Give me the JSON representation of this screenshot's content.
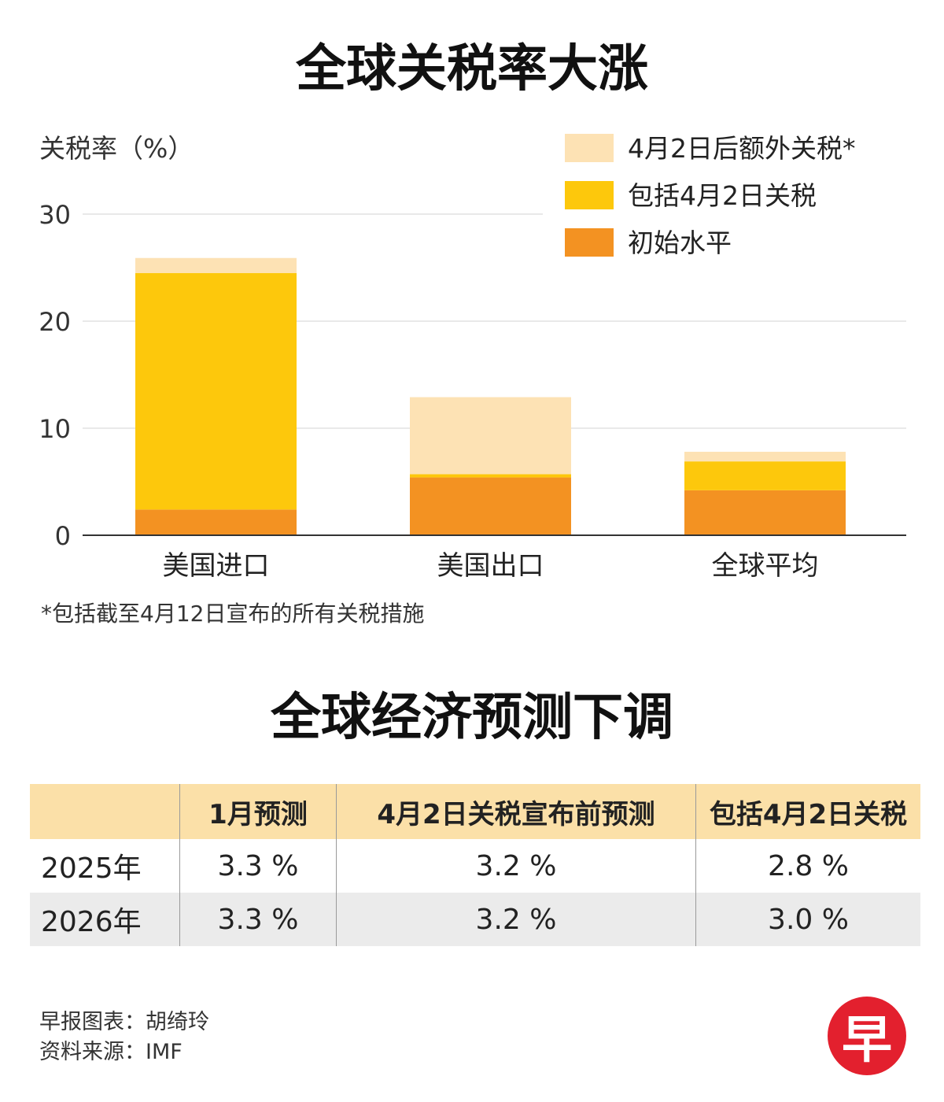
{
  "title_tariff": "全球关税率大涨",
  "title_forecast": "全球经济预测下调",
  "footnote": "*包括截至4月12日宣布的所有关税措施",
  "chart_data": {
    "type": "bar",
    "stacked": true,
    "ylabel": "关税率（%）",
    "ylim": [
      0,
      30
    ],
    "yticks": [
      0,
      10,
      20,
      30
    ],
    "categories": [
      "美国进口",
      "美国出口",
      "全球平均"
    ],
    "legend_position": "top-right",
    "series": [
      {
        "name": "初始水平",
        "color": "#f39222",
        "values": [
          2.4,
          5.4,
          4.2
        ]
      },
      {
        "name": "包括4月2日关税",
        "color": "#fdc80c",
        "values": [
          22.1,
          0.3,
          2.7
        ]
      },
      {
        "name": "4月2日后额外关税*",
        "color": "#fde2b4",
        "values": [
          1.4,
          7.2,
          0.9
        ]
      }
    ],
    "legend_order": [
      2,
      1,
      0
    ],
    "grid": true
  },
  "forecast_table": {
    "headers": [
      "",
      "1月预测",
      "4月2日关税宣布前预测",
      "包括4月2日关税"
    ],
    "rows": [
      [
        "2025年",
        "3.3 %",
        "3.2 %",
        "2.8 %"
      ],
      [
        "2026年",
        "3.3 %",
        "3.2 %",
        "3.0 %"
      ]
    ]
  },
  "credits": {
    "graphic": "早报图表：胡绮玲",
    "source": "资料来源：IMF"
  },
  "logo": {
    "char": "早",
    "color": "#e3202e",
    "icon": "zaobao-logo-icon"
  }
}
